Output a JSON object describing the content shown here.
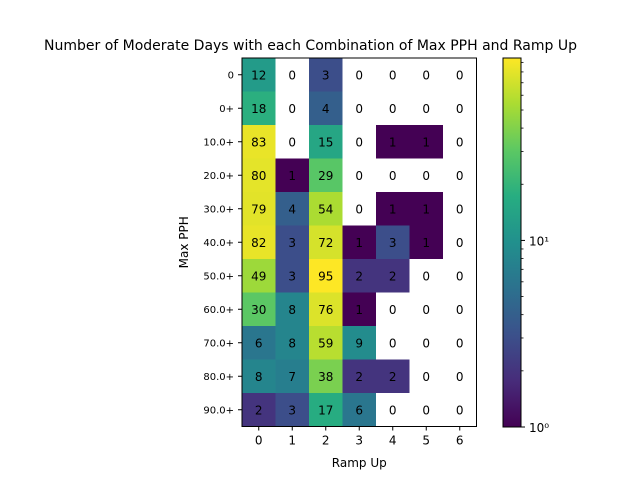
{
  "chart_data": {
    "type": "heatmap",
    "title": "Number of Moderate Days with each Combination of Max PPH and Ramp Up",
    "xlabel": "Ramp Up",
    "ylabel": "Max PPH",
    "x_categories": [
      "0",
      "1",
      "2",
      "3",
      "4",
      "5",
      "6"
    ],
    "y_categories": [
      "0",
      "0+",
      "10.0+",
      "20.0+",
      "30.0+",
      "40.0+",
      "50.0+",
      "60.0+",
      "70.0+",
      "80.0+",
      "90.0+"
    ],
    "values": [
      [
        12,
        0,
        3,
        0,
        0,
        0,
        0
      ],
      [
        18,
        0,
        4,
        0,
        0,
        0,
        0
      ],
      [
        83,
        0,
        15,
        0,
        1,
        1,
        0
      ],
      [
        80,
        1,
        29,
        0,
        0,
        0,
        0
      ],
      [
        79,
        4,
        54,
        0,
        1,
        1,
        0
      ],
      [
        82,
        3,
        72,
        1,
        3,
        1,
        0
      ],
      [
        49,
        3,
        95,
        2,
        2,
        0,
        0
      ],
      [
        30,
        8,
        76,
        1,
        0,
        0,
        0
      ],
      [
        6,
        8,
        59,
        9,
        0,
        0,
        0
      ],
      [
        8,
        7,
        38,
        2,
        2,
        0,
        0
      ],
      [
        2,
        3,
        17,
        6,
        0,
        0,
        0
      ]
    ],
    "color_scale": "log",
    "colormap": "viridis",
    "clim": [
      1,
      95
    ],
    "colorbar": {
      "major_ticks": [
        {
          "value": 10,
          "label": "10¹"
        },
        {
          "value": 1,
          "label": "10⁰"
        }
      ]
    },
    "zero_cells_color": "#ffffff"
  }
}
